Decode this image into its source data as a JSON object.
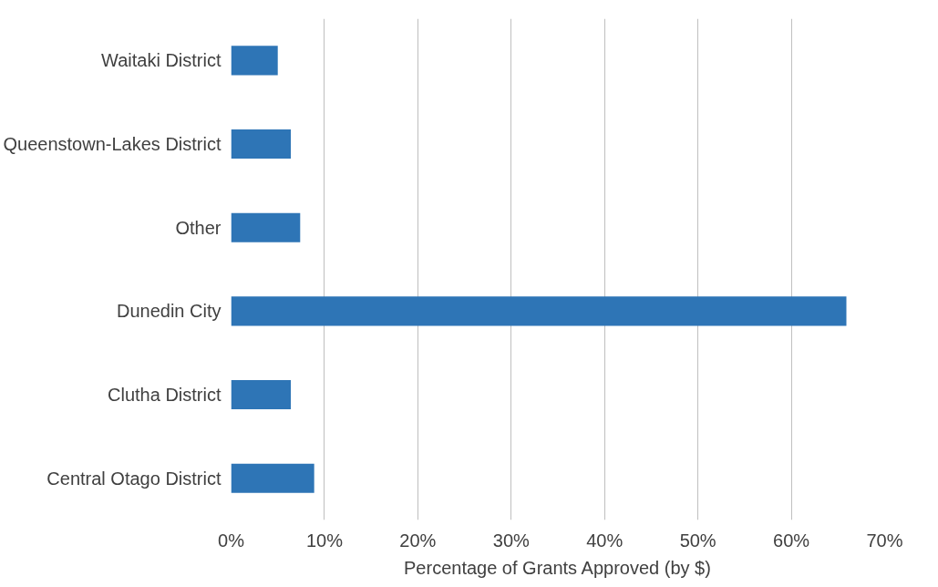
{
  "chart_data": {
    "type": "bar",
    "orientation": "horizontal",
    "xlabel": "Percentage of Grants Approved (by $)",
    "categories": [
      "Waitaki District",
      "Queenstown-Lakes District",
      "Other",
      "Dunedin City",
      "Clutha District",
      "Central Otago District"
    ],
    "values": [
      5.0,
      6.4,
      7.4,
      65.9,
      6.4,
      8.9
    ],
    "color": "#2e75b6",
    "xlim": [
      0,
      70
    ],
    "xticks": [
      {
        "value": 0,
        "label": "0%"
      },
      {
        "value": 10,
        "label": "10%"
      },
      {
        "value": 20,
        "label": "20%"
      },
      {
        "value": 30,
        "label": "30%"
      },
      {
        "value": 40,
        "label": "40%"
      },
      {
        "value": 50,
        "label": "50%"
      },
      {
        "value": 60,
        "label": "60%"
      },
      {
        "value": 70,
        "label": "70%"
      }
    ],
    "grid": "x"
  }
}
